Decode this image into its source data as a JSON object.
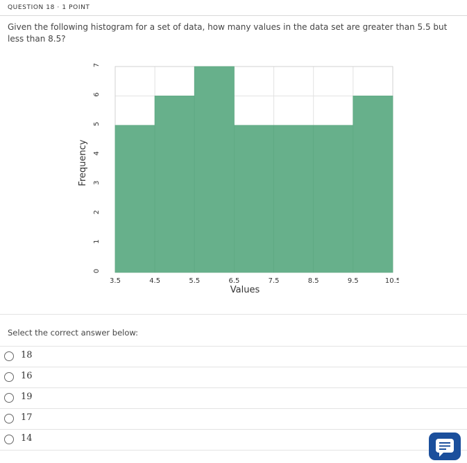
{
  "question": {
    "header": "QUESTION 18 · 1 POINT",
    "text": "Given the following histogram for a set of data, how many values in the data set are greater than 5.5 but less than 8.5?"
  },
  "chart_data": {
    "type": "bar",
    "bin_edges": [
      3.5,
      4.5,
      5.5,
      6.5,
      7.5,
      8.5,
      9.5,
      10.5
    ],
    "values": [
      5,
      6,
      7,
      5,
      5,
      5,
      6
    ],
    "xlabel": "Values",
    "ylabel": "Frequency",
    "xticks": [
      "3.5",
      "4.5",
      "5.5",
      "6.5",
      "7.5",
      "8.5",
      "9.5",
      "10.5"
    ],
    "yticks": [
      "0",
      "1",
      "2",
      "3",
      "4",
      "5",
      "6",
      "7"
    ],
    "xlim": [
      3.5,
      10.5
    ],
    "ylim": [
      0,
      7
    ],
    "grid": true,
    "bar_color": "#67b08b"
  },
  "prompt": "Select the correct answer below:",
  "options": [
    "18",
    "16",
    "19",
    "17",
    "14"
  ],
  "chat": {
    "icon": "chat-icon"
  }
}
